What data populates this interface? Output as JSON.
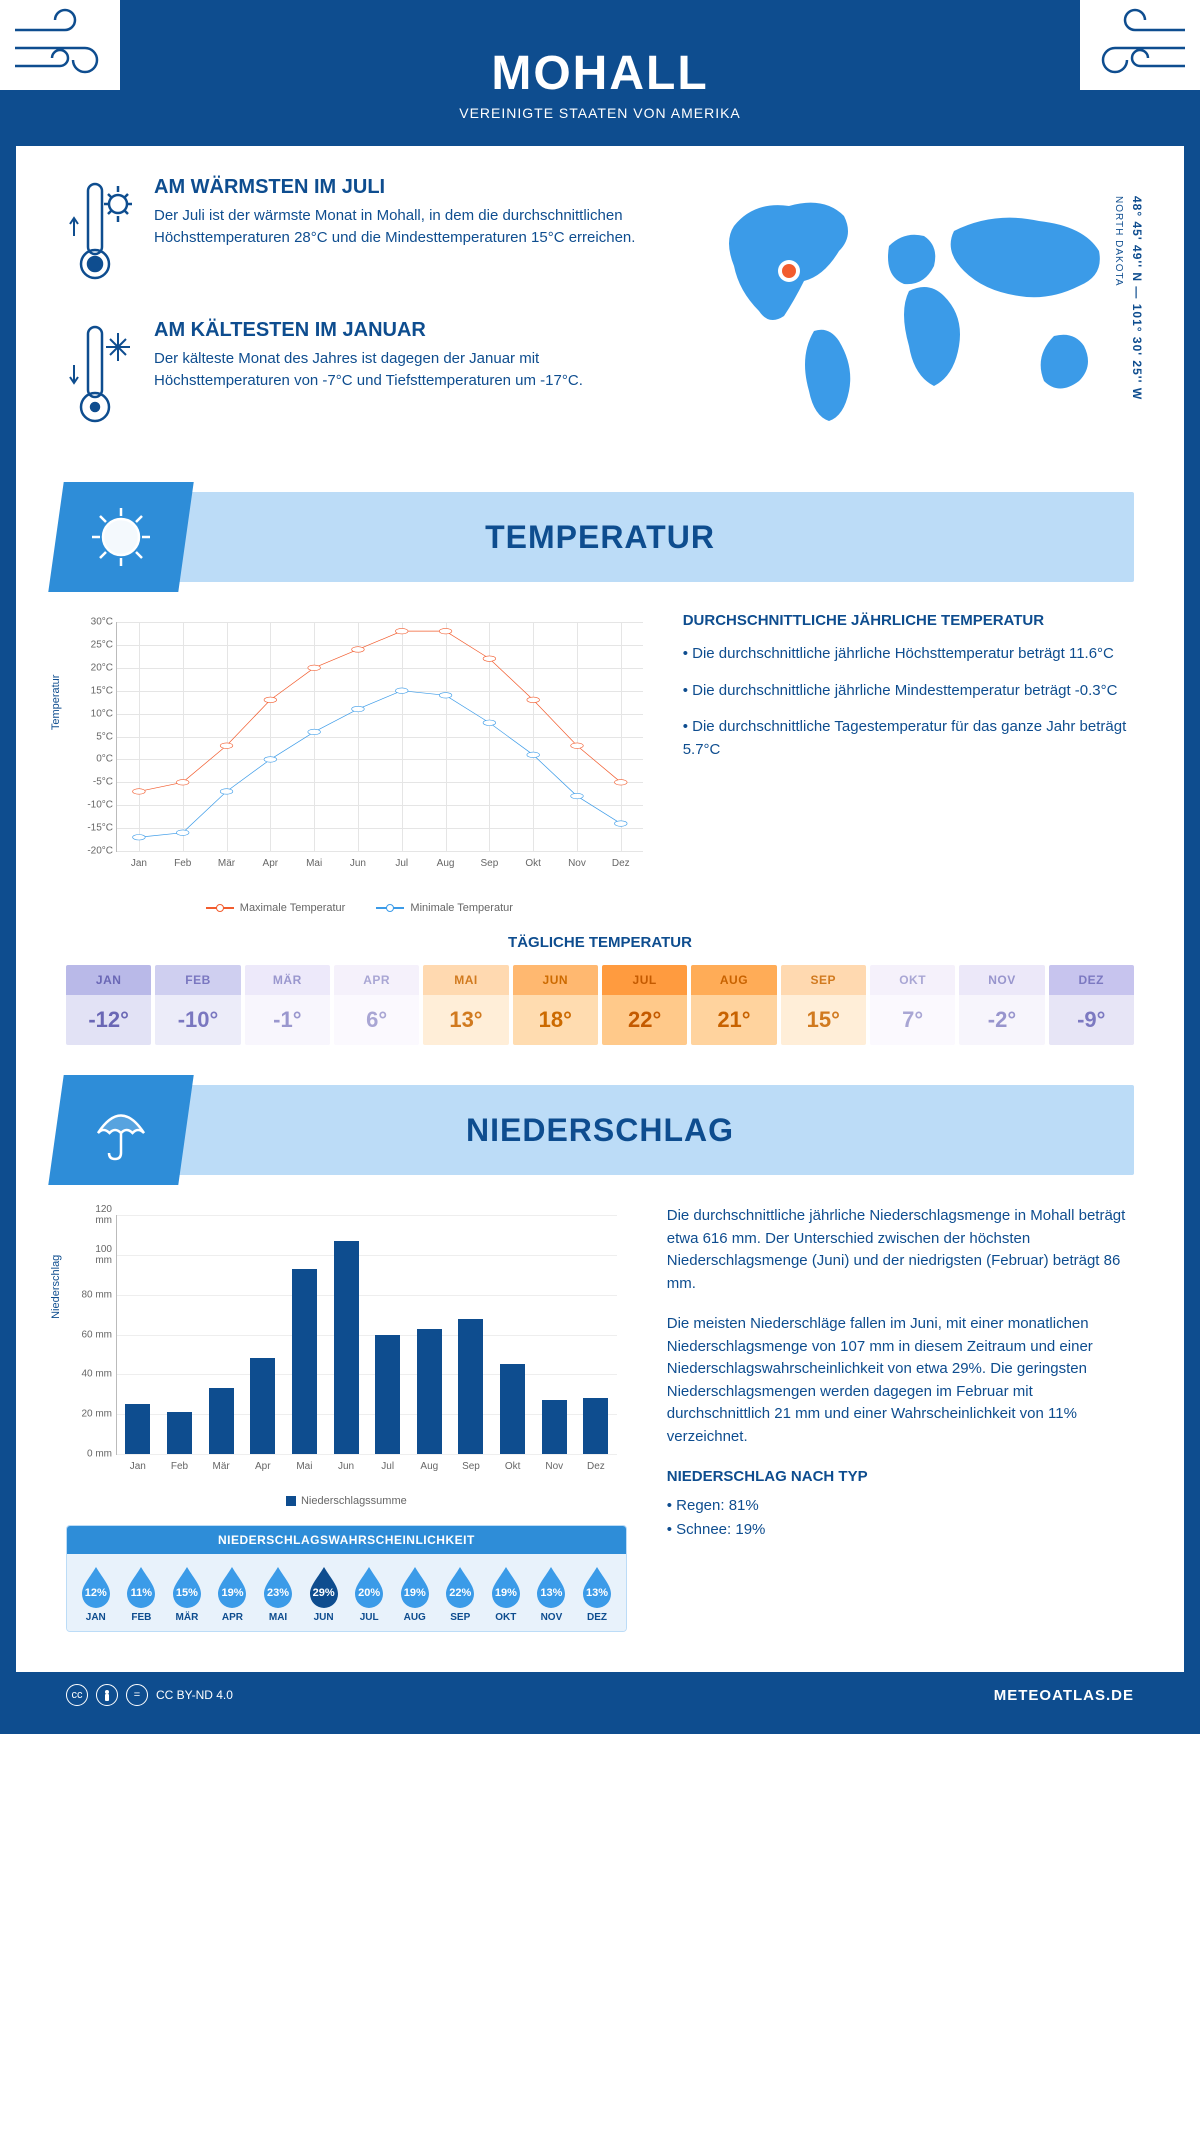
{
  "header": {
    "title": "MOHALL",
    "subtitle": "VEREINIGTE STAATEN VON AMERIKA"
  },
  "coords": "48° 45' 49'' N — 101° 30' 25'' W",
  "state": "NORTH DAKOTA",
  "warmest": {
    "title": "AM WÄRMSTEN IM JULI",
    "text": "Der Juli ist der wärmste Monat in Mohall, in dem die durchschnittlichen Höchsttemperaturen 28°C und die Mindesttemperaturen 15°C erreichen."
  },
  "coldest": {
    "title": "AM KÄLTESTEN IM JANUAR",
    "text": "Der kälteste Monat des Jahres ist dagegen der Januar mit Höchsttemperaturen von -7°C und Tiefsttemperaturen um -17°C."
  },
  "section_temp": "TEMPERATUR",
  "section_precip": "NIEDERSCHLAG",
  "temp_chart": {
    "months": [
      "Jan",
      "Feb",
      "Mär",
      "Apr",
      "Mai",
      "Jun",
      "Jul",
      "Aug",
      "Sep",
      "Okt",
      "Nov",
      "Dez"
    ],
    "max_series": [
      -7,
      -5,
      3,
      13,
      20,
      24,
      28,
      28,
      22,
      13,
      3,
      -5
    ],
    "min_series": [
      -17,
      -16,
      -7,
      0,
      6,
      11,
      15,
      14,
      8,
      1,
      -8,
      -14
    ],
    "ymin": -20,
    "ymax": 30,
    "ystep": 5,
    "ylabel": "Temperatur",
    "max_color": "#f25c2e",
    "min_color": "#3b9be8",
    "grid_color": "#e5e5e5",
    "legend_max": "Maximale Temperatur",
    "legend_min": "Minimale Temperatur"
  },
  "temp_info": {
    "heading": "DURCHSCHNITTLICHE JÄHRLICHE TEMPERATUR",
    "b1": "• Die durchschnittliche jährliche Höchsttemperatur beträgt 11.6°C",
    "b2": "• Die durchschnittliche jährliche Mindesttemperatur beträgt -0.3°C",
    "b3": "• Die durchschnittliche Tagestemperatur für das ganze Jahr beträgt 5.7°C"
  },
  "daily": {
    "heading": "TÄGLICHE TEMPERATUR",
    "months": [
      "JAN",
      "FEB",
      "MÄR",
      "APR",
      "MAI",
      "JUN",
      "JUL",
      "AUG",
      "SEP",
      "OKT",
      "NOV",
      "DEZ"
    ],
    "values": [
      "-12°",
      "-10°",
      "-1°",
      "6°",
      "13°",
      "18°",
      "22°",
      "21°",
      "15°",
      "7°",
      "-2°",
      "-9°"
    ],
    "head_colors": [
      "#b9b9e8",
      "#cfcff0",
      "#ede9fa",
      "#f5f1fb",
      "#ffd9b0",
      "#ffb870",
      "#ff9b3f",
      "#ffac57",
      "#ffd9b0",
      "#f5f1fb",
      "#ece8f9",
      "#c7c4ee"
    ],
    "val_colors": [
      "#e2e2f5",
      "#ececf9",
      "#f8f6fd",
      "#fbf9fe",
      "#ffeed8",
      "#ffdcb0",
      "#ffc98a",
      "#ffd39e",
      "#ffeed8",
      "#fbf9fe",
      "#f7f5fc",
      "#e7e5f6"
    ],
    "text_colors": [
      "#6a67b5",
      "#7a77c0",
      "#9a97ce",
      "#a9a6d4",
      "#d17a1f",
      "#cc6a00",
      "#c45a00",
      "#c86200",
      "#d17a1f",
      "#a9a6d4",
      "#9895cd",
      "#7c79c1"
    ]
  },
  "precip_chart": {
    "months": [
      "Jan",
      "Feb",
      "Mär",
      "Apr",
      "Mai",
      "Jun",
      "Jul",
      "Aug",
      "Sep",
      "Okt",
      "Nov",
      "Dez"
    ],
    "values": [
      25,
      21,
      33,
      48,
      93,
      107,
      60,
      63,
      68,
      45,
      27,
      28
    ],
    "ymax": 120,
    "ystep": 20,
    "ylabel": "Niederschlag",
    "bar_color": "#0e4d8f",
    "legend": "Niederschlagssumme"
  },
  "precip_text": {
    "p1": "Die durchschnittliche jährliche Niederschlagsmenge in Mohall beträgt etwa 616 mm. Der Unterschied zwischen der höchsten Niederschlagsmenge (Juni) und der niedrigsten (Februar) beträgt 86 mm.",
    "p2": "Die meisten Niederschläge fallen im Juni, mit einer monatlichen Niederschlagsmenge von 107 mm in diesem Zeitraum und einer Niederschlagswahrscheinlichkeit von etwa 29%. Die geringsten Niederschlagsmengen werden dagegen im Februar mit durchschnittlich 21 mm und einer Wahrscheinlichkeit von 11% verzeichnet.",
    "type_heading": "NIEDERSCHLAG NACH TYP",
    "type_rain": "• Regen: 81%",
    "type_snow": "• Schnee: 19%"
  },
  "prob": {
    "heading": "NIEDERSCHLAGSWAHRSCHEINLICHKEIT",
    "months": [
      "JAN",
      "FEB",
      "MÄR",
      "APR",
      "MAI",
      "JUN",
      "JUL",
      "AUG",
      "SEP",
      "OKT",
      "NOV",
      "DEZ"
    ],
    "values": [
      "12%",
      "11%",
      "15%",
      "19%",
      "23%",
      "29%",
      "20%",
      "19%",
      "22%",
      "19%",
      "13%",
      "13%"
    ],
    "max_index": 5,
    "drop_color": "#3b9be8",
    "drop_max_color": "#0e4d8f"
  },
  "footer": {
    "license": "CC BY-ND 4.0",
    "site": "METEOATLAS.DE"
  }
}
